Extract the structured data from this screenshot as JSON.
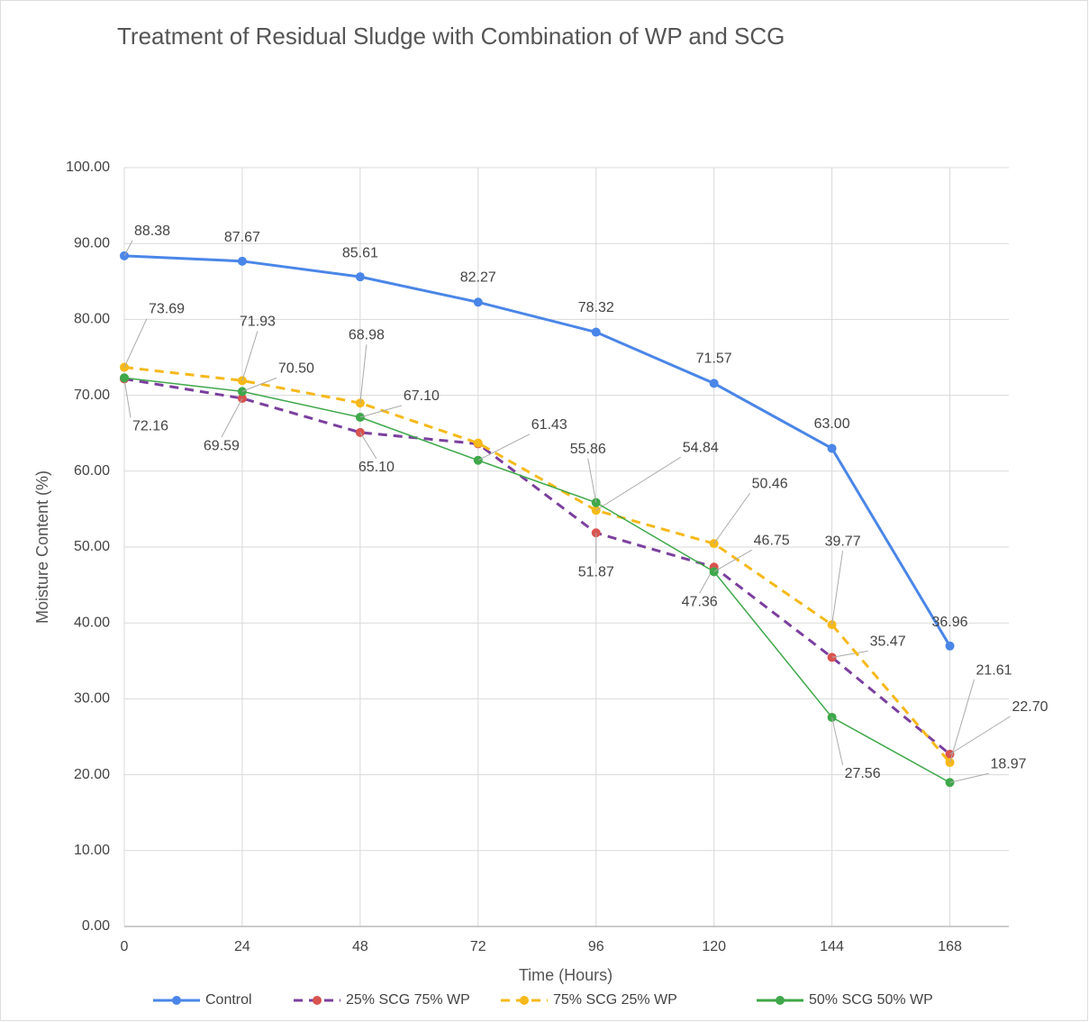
{
  "chart_data": {
    "type": "line",
    "title": "Treatment of Residual Sludge with  Combination of WP and SCG",
    "x_label": "Time (Hours)",
    "y_label": "Moisture Content (%)",
    "x": [
      0,
      24,
      48,
      72,
      96,
      120,
      144,
      168
    ],
    "xlim": [
      0,
      180
    ],
    "xticks": [
      0,
      24,
      48,
      72,
      96,
      120,
      144,
      168
    ],
    "ylim": [
      0,
      100
    ],
    "yticks": [
      {
        "value": 0,
        "label": "0.00"
      },
      {
        "value": 10,
        "label": "10.00"
      },
      {
        "value": 20,
        "label": "20.00"
      },
      {
        "value": 30,
        "label": "30.00"
      },
      {
        "value": 40,
        "label": "40.00"
      },
      {
        "value": 50,
        "label": "50.00"
      },
      {
        "value": 60,
        "label": "60.00"
      },
      {
        "value": 70,
        "label": "70.00"
      },
      {
        "value": 80,
        "label": "80.00"
      },
      {
        "value": 90,
        "label": "90.00"
      },
      {
        "value": 100,
        "label": "100.00"
      }
    ],
    "grid": true,
    "legend": "bottom",
    "series": [
      {
        "name": "Control",
        "color": "#4a86e8",
        "dashed": false,
        "values": [
          88.38,
          87.67,
          85.61,
          82.27,
          78.32,
          71.57,
          63.0,
          36.96
        ],
        "value_labels": [
          "88.38",
          "87.67",
          "85.61",
          "82.27",
          "78.32",
          "71.57",
          "63.00",
          "36.96"
        ]
      },
      {
        "name": "25% SCG 75% WP",
        "color": "#7b3f9e",
        "marker_color": "#d9534f",
        "dashed": true,
        "values": [
          72.16,
          69.59,
          65.1,
          63.6,
          51.87,
          47.36,
          35.47,
          22.7
        ],
        "value_labels": [
          "72.16",
          "69.59",
          "65.10",
          null,
          "51.87",
          "47.36",
          "35.47",
          "22.70"
        ]
      },
      {
        "name": "75% SCG 25% WP",
        "color": "#f6b91a",
        "dashed": true,
        "values": [
          73.69,
          71.93,
          68.98,
          63.7,
          54.84,
          50.46,
          39.77,
          21.61
        ],
        "value_labels": [
          "73.69",
          "71.93",
          "68.98",
          null,
          "54.84",
          "50.46",
          "39.77",
          "21.61"
        ]
      },
      {
        "name": "50% SCG 50% WP",
        "color": "#3ea84a",
        "dashed": false,
        "values": [
          72.3,
          70.5,
          67.1,
          61.43,
          55.86,
          46.75,
          27.56,
          18.97
        ],
        "value_labels": [
          null,
          "70.50",
          "67.10",
          "61.43",
          "55.86",
          "46.75",
          "27.56",
          "18.97"
        ]
      }
    ]
  }
}
